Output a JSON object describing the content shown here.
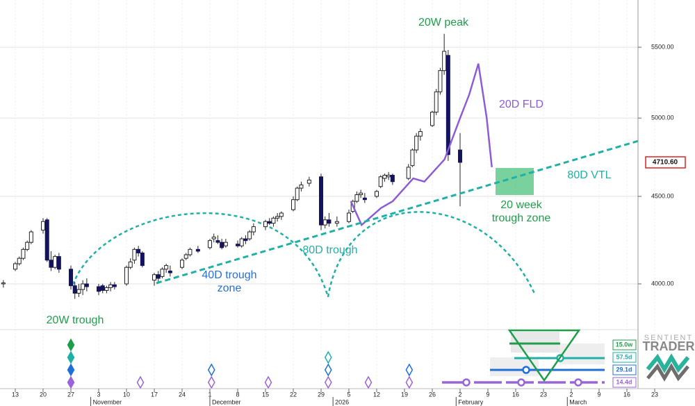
{
  "chart_data": {
    "type": "candlestick",
    "log_scale": true,
    "grid": true,
    "xlim": [
      -3.85,
      156.8
    ],
    "ylim": [
      3761,
      5861
    ],
    "yticks": [
      {
        "value": 4000,
        "label": "4000.00"
      },
      {
        "value": 4500,
        "label": "4500.00"
      },
      {
        "value": 5000,
        "label": "5000.00"
      },
      {
        "value": 5500,
        "label": "5500.00"
      }
    ],
    "xticks": [
      {
        "value": 0,
        "label": "13"
      },
      {
        "value": 7,
        "label": "20"
      },
      {
        "value": 14,
        "label": "27"
      },
      {
        "value": 21,
        "label": "3"
      },
      {
        "value": 28,
        "label": "10"
      },
      {
        "value": 35,
        "label": "17"
      },
      {
        "value": 42,
        "label": "24"
      },
      {
        "value": 49,
        "label": "1"
      },
      {
        "value": 56,
        "label": "8"
      },
      {
        "value": 63,
        "label": "15"
      },
      {
        "value": 70,
        "label": "22"
      },
      {
        "value": 77,
        "label": "29"
      },
      {
        "value": 84,
        "label": "5"
      },
      {
        "value": 91,
        "label": "12"
      },
      {
        "value": 98,
        "label": "19"
      },
      {
        "value": 105,
        "label": "26"
      },
      {
        "value": 112,
        "label": "2"
      },
      {
        "value": 119,
        "label": "9"
      },
      {
        "value": 126,
        "label": "16"
      },
      {
        "value": 133,
        "label": "23"
      },
      {
        "value": 140,
        "label": "2"
      },
      {
        "value": 147,
        "label": "9"
      },
      {
        "value": 154,
        "label": "16"
      },
      {
        "value": 161,
        "label": "23"
      }
    ],
    "months": [
      {
        "value": 19,
        "label": "November"
      },
      {
        "value": 49,
        "label": "December"
      },
      {
        "value": 80,
        "label": "2026"
      },
      {
        "value": 111,
        "label": "February"
      },
      {
        "value": 139,
        "label": "March"
      }
    ],
    "up_color": "#ffffff",
    "down_color": "#14145e",
    "candles": {
      "x": [
        -3,
        0,
        1,
        2,
        3,
        4,
        7,
        8,
        9,
        10,
        11,
        14,
        15,
        16,
        17,
        18,
        21,
        22,
        23,
        24,
        25,
        28,
        29,
        30,
        31,
        32,
        35,
        36,
        37,
        38,
        39,
        42,
        43,
        44,
        46,
        49,
        50,
        51,
        52,
        53,
        56,
        57,
        58,
        59,
        60,
        63,
        64,
        65,
        66,
        67,
        70,
        71,
        72,
        74,
        77,
        78,
        79,
        81,
        84,
        85,
        86,
        87,
        88,
        91,
        92,
        93,
        94,
        95,
        99,
        100,
        101,
        102,
        105,
        106,
        107,
        108,
        109,
        112
      ],
      "open": [
        4000,
        4080,
        4110,
        4140,
        4190,
        4230,
        4300,
        4360,
        4130,
        4090,
        4150,
        4080,
        3990,
        3950,
        3970,
        4000,
        3985,
        3990,
        3965,
        3980,
        3995,
        4000,
        4090,
        4130,
        4190,
        4170,
        4020,
        4050,
        4040,
        4080,
        4070,
        4090,
        4140,
        4160,
        4190,
        4200,
        4250,
        4240,
        4230,
        4210,
        4220,
        4210,
        4250,
        4250,
        4290,
        4320,
        4350,
        4340,
        4370,
        4380,
        4420,
        4480,
        4550,
        4580,
        4620,
        4330,
        4360,
        4340,
        4350,
        4410,
        4470,
        4510,
        4490,
        4500,
        4560,
        4610,
        4620,
        4630,
        4610,
        4690,
        4790,
        4880,
        4950,
        5040,
        5180,
        5330,
        5440,
        4790
      ],
      "high": [
        4020,
        4120,
        4150,
        4200,
        4240,
        4300,
        4370,
        4370,
        4180,
        4160,
        4170,
        4100,
        4010,
        4000,
        4020,
        4030,
        4000,
        4000,
        3990,
        4010,
        4010,
        4100,
        4140,
        4200,
        4210,
        4180,
        4060,
        4070,
        4090,
        4110,
        4100,
        4140,
        4170,
        4200,
        4210,
        4250,
        4280,
        4270,
        4250,
        4250,
        4240,
        4260,
        4270,
        4300,
        4340,
        4360,
        4370,
        4380,
        4400,
        4410,
        4500,
        4560,
        4590,
        4620,
        4640,
        4380,
        4400,
        4380,
        4420,
        4480,
        4530,
        4540,
        4520,
        4540,
        4630,
        4640,
        4650,
        4640,
        4700,
        4800,
        4900,
        4930,
        5050,
        5200,
        5350,
        5600,
        5480,
        4900
      ],
      "low": [
        3980,
        4070,
        4100,
        4130,
        4180,
        4220,
        4280,
        4120,
        4070,
        4080,
        4060,
        3970,
        3920,
        3930,
        3940,
        3960,
        3940,
        3950,
        3950,
        3960,
        3970,
        3990,
        4080,
        4110,
        4150,
        4090,
        3990,
        4010,
        4030,
        4060,
        4040,
        4080,
        4130,
        4150,
        4170,
        4190,
        4230,
        4220,
        4190,
        4200,
        4200,
        4200,
        4220,
        4240,
        4270,
        4300,
        4330,
        4320,
        4350,
        4360,
        4410,
        4470,
        4530,
        4560,
        4300,
        4310,
        4320,
        4320,
        4340,
        4400,
        4460,
        4490,
        4460,
        4490,
        4550,
        4590,
        4600,
        4570,
        4600,
        4680,
        4770,
        4850,
        4940,
        5020,
        5160,
        5300,
        4720,
        4440
      ],
      "close": [
        4005,
        4110,
        4140,
        4190,
        4230,
        4290,
        4350,
        4130,
        4090,
        4150,
        4080,
        3990,
        3950,
        3970,
        4000,
        3985,
        3960,
        3965,
        3980,
        3995,
        3985,
        4090,
        4120,
        4190,
        4170,
        4100,
        4050,
        4030,
        4080,
        4100,
        4060,
        4130,
        4160,
        4190,
        4180,
        4240,
        4260,
        4230,
        4200,
        4230,
        4210,
        4250,
        4240,
        4290,
        4320,
        4350,
        4340,
        4370,
        4380,
        4400,
        4480,
        4550,
        4570,
        4600,
        4330,
        4360,
        4340,
        4350,
        4400,
        4470,
        4510,
        4520,
        4480,
        4530,
        4620,
        4630,
        4630,
        4590,
        4680,
        4790,
        4880,
        4910,
        5040,
        5180,
        5330,
        5470,
        4760,
        4710.6
      ]
    },
    "last_price": {
      "value": 4710.6,
      "label": "4710.60"
    },
    "series": [
      {
        "name": "20D FLD",
        "color": "#8e5bd6",
        "dashed": false,
        "x": [
          84.5,
          87.2,
          92.1,
          95,
          100.2,
          103,
          108.1,
          112,
          114.3,
          116.6,
          118.7,
          120
        ],
        "values": [
          4470,
          4330,
          4430,
          4470,
          4610,
          4590,
          4730,
          5000,
          5160,
          5380,
          5000,
          4680
        ]
      },
      {
        "name": "80D VTL",
        "color": "#1fb0a6",
        "dashed": true,
        "x": [
          35.5,
          156.8
        ],
        "values": [
          4004,
          4848
        ]
      }
    ],
    "annotations": [
      [
        "20W peak"
      ],
      [
        "20 week",
        "trough zone"
      ],
      [
        "80D trough"
      ],
      [
        "40D trough",
        "zone"
      ],
      [
        "20W trough"
      ]
    ],
    "cycles": [
      {
        "label": "15.0w",
        "color": "#1e9e4a",
        "troughs": [
          14
        ]
      },
      {
        "label": "57.5d",
        "color": "#1fb0a6",
        "troughs": [
          14,
          78.8
        ]
      },
      {
        "label": "29.1d",
        "color": "#1e6fd9",
        "troughs": [
          14,
          49.4,
          78.8,
          99.2
        ]
      },
      {
        "label": "14.4d",
        "color": "#9b63d9",
        "troughs": [
          14,
          31.5,
          49.4,
          63.7,
          78.8,
          88.9,
          99.2
        ]
      }
    ],
    "logo": [
      "SENTIENT",
      "TRADER"
    ]
  }
}
